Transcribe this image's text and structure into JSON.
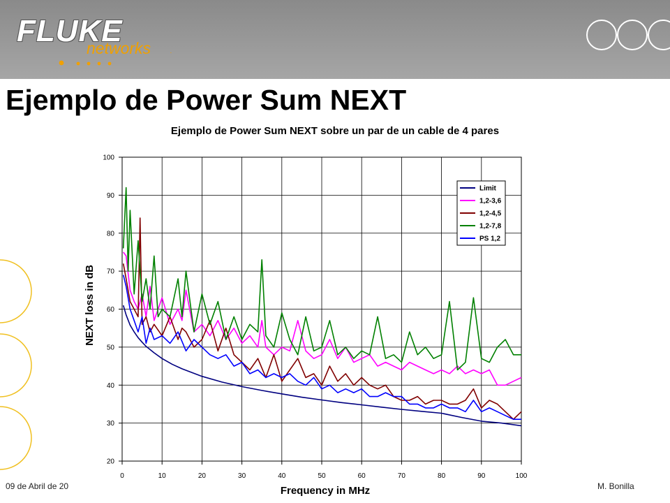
{
  "header": {
    "logo_main": "FLUKE",
    "logo_sub": "networks",
    "logo_tm": ".",
    "accent_color": "#f0a000"
  },
  "page_title": "Ejemplo de Power Sum NEXT",
  "footer": {
    "date": "09 de Abril de 20",
    "author": "M. Bonilla"
  },
  "chart_data": {
    "type": "line",
    "title": "Ejemplo de Power Sum NEXT sobre un par de un cable de 4 pares",
    "xlabel": "Frequency in MHz",
    "ylabel": "NEXT loss in dB",
    "xlim": [
      0,
      100
    ],
    "ylim": [
      20,
      100
    ],
    "xticks": [
      0,
      10,
      20,
      30,
      40,
      50,
      60,
      70,
      80,
      90,
      100
    ],
    "yticks": [
      20,
      30,
      40,
      50,
      60,
      70,
      80,
      90,
      100
    ],
    "grid": true,
    "legend_position": "top-right",
    "series": [
      {
        "name": "Limit",
        "color": "#000080",
        "x": [
          0.3,
          1,
          2,
          3,
          4,
          5,
          6,
          8,
          10,
          12.5,
          15,
          20,
          25,
          30,
          35,
          40,
          45,
          50,
          55,
          60,
          65,
          70,
          75,
          80,
          85,
          90,
          95,
          100
        ],
        "y": [
          61,
          58.5,
          55.8,
          54,
          52.5,
          51.3,
          50.2,
          48.5,
          47,
          45.5,
          44.3,
          42.3,
          40.8,
          39.6,
          38.6,
          37.7,
          36.8,
          36.1,
          35.4,
          34.8,
          34.2,
          33.6,
          33.1,
          32.6,
          31.5,
          30.5,
          30,
          29.3
        ]
      },
      {
        "name": "1,2-3,6",
        "color": "#ff00ff",
        "x": [
          0.3,
          1,
          2,
          3,
          4,
          5,
          6,
          7,
          8,
          10,
          12,
          14,
          15,
          16,
          18,
          20,
          22,
          24,
          26,
          28,
          30,
          32,
          34,
          35,
          36,
          38,
          40,
          42,
          44,
          46,
          48,
          50,
          52,
          54,
          56,
          58,
          60,
          62,
          64,
          66,
          68,
          70,
          72,
          74,
          76,
          78,
          80,
          82,
          84,
          86,
          88,
          90,
          92,
          94,
          96,
          98,
          100
        ],
        "y": [
          75,
          74,
          65,
          62,
          60,
          64,
          58,
          66,
          57,
          63,
          56,
          60,
          57,
          65,
          54,
          56,
          53,
          57,
          52,
          55,
          51,
          53,
          50,
          57,
          50,
          48,
          50,
          49,
          57,
          49,
          47,
          48,
          52,
          47,
          50,
          46,
          47,
          48,
          45,
          46,
          45,
          44,
          46,
          45,
          44,
          43,
          44,
          43,
          45,
          43,
          44,
          43,
          44,
          40,
          40,
          41,
          42
        ]
      },
      {
        "name": "1,2-4,5",
        "color": "#800000",
        "x": [
          0.3,
          1,
          2,
          3,
          4,
          4.5,
          5,
          6,
          7,
          8,
          10,
          12,
          14,
          15,
          16,
          18,
          20,
          22,
          24,
          26,
          28,
          30,
          32,
          34,
          36,
          38,
          40,
          42,
          44,
          46,
          48,
          50,
          52,
          54,
          56,
          58,
          60,
          62,
          64,
          66,
          68,
          70,
          72,
          74,
          76,
          78,
          80,
          82,
          84,
          86,
          88,
          90,
          92,
          94,
          96,
          98,
          100
        ],
        "y": [
          72,
          68,
          62,
          60,
          58,
          84,
          56,
          58,
          54,
          56,
          53,
          58,
          52,
          55,
          54,
          50,
          52,
          57,
          49,
          55,
          48,
          46,
          44,
          47,
          42,
          48,
          41,
          44,
          47,
          42,
          43,
          40,
          45,
          41,
          43,
          40,
          42,
          40,
          39,
          40,
          37,
          36,
          36,
          37,
          35,
          36,
          36,
          35,
          35,
          36,
          39,
          34,
          36,
          35,
          33,
          31,
          33
        ]
      },
      {
        "name": "1,2-7,8",
        "color": "#008000",
        "x": [
          0.3,
          1,
          1.5,
          2,
          3,
          4,
          5,
          6,
          7,
          8,
          9,
          10,
          12,
          14,
          15,
          16,
          18,
          20,
          22,
          24,
          26,
          28,
          30,
          32,
          34,
          35,
          36,
          38,
          40,
          42,
          44,
          46,
          48,
          50,
          52,
          54,
          56,
          58,
          60,
          62,
          64,
          66,
          68,
          70,
          72,
          74,
          76,
          78,
          80,
          82,
          84,
          86,
          88,
          90,
          92,
          94,
          96,
          98,
          100
        ],
        "y": [
          76,
          92,
          70,
          86,
          64,
          78,
          62,
          68,
          60,
          74,
          58,
          60,
          58,
          68,
          58,
          70,
          54,
          64,
          56,
          62,
          52,
          58,
          52,
          56,
          54,
          73,
          53,
          50,
          59,
          52,
          48,
          58,
          49,
          50,
          57,
          48,
          50,
          47,
          49,
          48,
          58,
          47,
          48,
          46,
          54,
          48,
          50,
          47,
          48,
          62,
          44,
          46,
          63,
          47,
          46,
          50,
          52,
          48,
          48
        ]
      },
      {
        "name": "PS 1,2",
        "color": "#0000ff",
        "x": [
          0.3,
          1,
          2,
          3,
          4,
          5,
          6,
          7,
          8,
          10,
          12,
          14,
          16,
          18,
          20,
          22,
          24,
          26,
          28,
          30,
          32,
          34,
          36,
          38,
          40,
          42,
          44,
          46,
          48,
          50,
          52,
          54,
          56,
          58,
          60,
          62,
          64,
          66,
          68,
          70,
          72,
          74,
          76,
          78,
          80,
          82,
          84,
          86,
          88,
          90,
          92,
          94,
          96,
          98,
          100
        ],
        "y": [
          69,
          66,
          60,
          57,
          54,
          58,
          51,
          55,
          52,
          53,
          51,
          54,
          49,
          52,
          50,
          48,
          47,
          48,
          45,
          46,
          43,
          44,
          42,
          43,
          42,
          43,
          41,
          40,
          42,
          39,
          40,
          38,
          39,
          38,
          39,
          37,
          37,
          38,
          37,
          37,
          35,
          35,
          34,
          34,
          35,
          34,
          34,
          33,
          36,
          33,
          34,
          33,
          32,
          31,
          31
        ]
      }
    ]
  }
}
